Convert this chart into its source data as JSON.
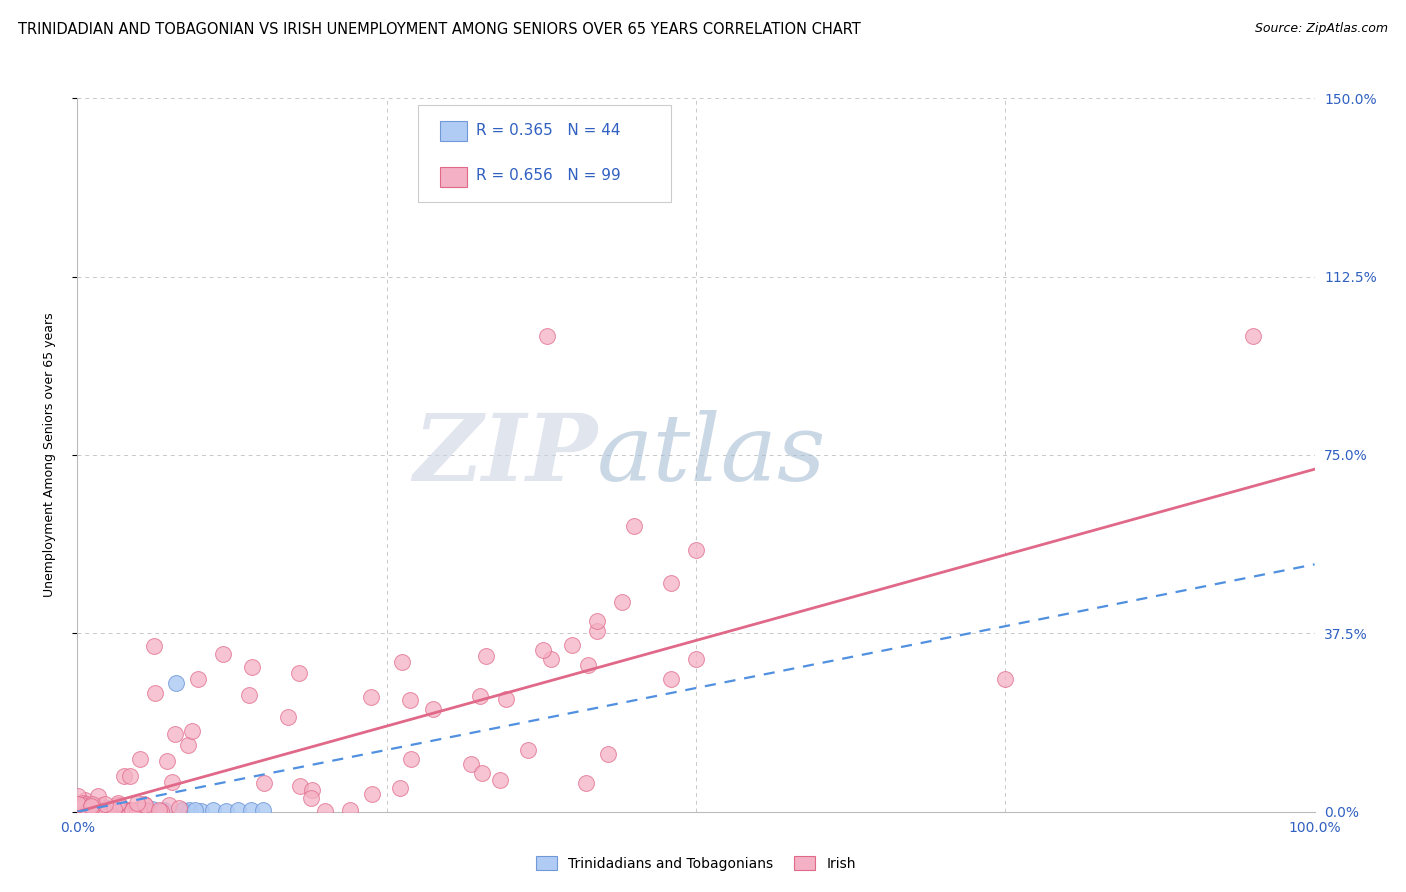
{
  "title": "TRINIDADIAN AND TOBAGONIAN VS IRISH UNEMPLOYMENT AMONG SENIORS OVER 65 YEARS CORRELATION CHART",
  "source": "Source: ZipAtlas.com",
  "ylabel": "Unemployment Among Seniors over 65 years",
  "xlim": [
    0.0,
    1.0
  ],
  "ylim": [
    0.0,
    1.5
  ],
  "xticks": [
    0.0,
    0.25,
    0.5,
    0.75,
    1.0
  ],
  "xticklabels": [
    "0.0%",
    "",
    "",
    "",
    "100.0%"
  ],
  "yticks": [
    0.0,
    0.375,
    0.75,
    1.125,
    1.5
  ],
  "yticklabels": [
    "",
    "37.5%",
    "75.0%",
    "112.5%",
    "150.0%"
  ],
  "title_fontsize": 10.5,
  "source_fontsize": 9,
  "axis_label_fontsize": 9,
  "tick_fontsize": 10,
  "grid_color": "#c8c8c8",
  "tt_scatter_color": "#b0ccf4",
  "tt_scatter_edgecolor": "#7098d8",
  "irish_scatter_color": "#f4b0c4",
  "irish_scatter_edgecolor": "#e06888",
  "tt_line_color": "#5090e0",
  "tt_line_style": "--",
  "irish_line_color": "#e06888",
  "irish_line_style": "-",
  "legend_tt_color": "#b0ccf4",
  "legend_irish_color": "#f4b0c4",
  "tt_R": 0.365,
  "tt_N": 44,
  "irish_R": 0.656,
  "irish_N": 99,
  "irish_line_x0": 0.0,
  "irish_line_y0": 0.0,
  "irish_line_x1": 1.0,
  "irish_line_y1": 0.72,
  "tt_line_x0": 0.0,
  "tt_line_y0": 0.0,
  "tt_line_x1": 1.0,
  "tt_line_y1": 0.52
}
